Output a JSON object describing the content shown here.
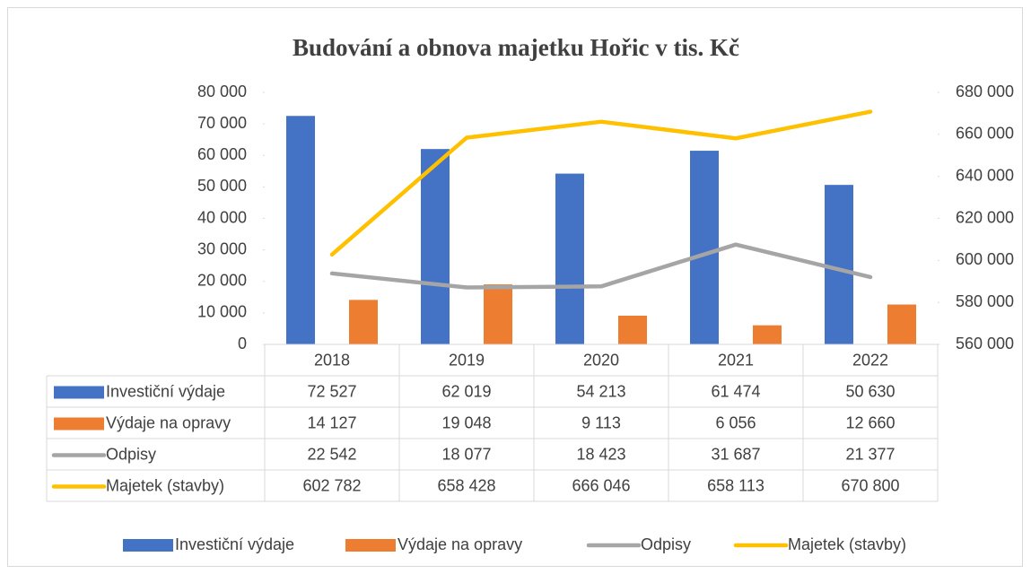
{
  "chart_data": {
    "type": "bar",
    "title": "Budování a obnova majetku Hořic v tis. Kč",
    "categories": [
      "2018",
      "2019",
      "2020",
      "2021",
      "2022"
    ],
    "series": [
      {
        "name": "Investiční výdaje",
        "type": "bar",
        "color": "#4472c4",
        "values": [
          72527,
          62019,
          54213,
          61474,
          50630
        ],
        "value_labels": [
          "72 527",
          "62 019",
          "54 213",
          "61 474",
          "50 630"
        ]
      },
      {
        "name": "Výdaje na opravy",
        "type": "bar",
        "color": "#ed7d31",
        "values": [
          14127,
          19048,
          9113,
          6056,
          12660
        ],
        "value_labels": [
          "14 127",
          "19 048",
          "9 113",
          "6 056",
          "12 660"
        ]
      },
      {
        "name": "Odpisy",
        "type": "line",
        "color": "#a5a5a5",
        "values": [
          22542,
          18077,
          18423,
          31687,
          21377
        ],
        "value_labels": [
          "22 542",
          "18 077",
          "18 423",
          "31 687",
          "21 377"
        ]
      },
      {
        "name": "Majetek (stavby)",
        "type": "line",
        "axis": "y2",
        "color": "#ffc000",
        "values": [
          602782,
          658428,
          666046,
          658113,
          670800
        ],
        "value_labels": [
          "602 782",
          "658 428",
          "666 046",
          "658 113",
          "670 800"
        ]
      }
    ],
    "ylim": [
      0,
      80000
    ],
    "yticks": [
      0,
      {
        "value": 10000,
        "label": "10 000"
      },
      {
        "value": 20000,
        "label": "20 000"
      },
      {
        "value": 30000,
        "label": "30 000"
      },
      {
        "value": 40000,
        "label": "40 000"
      },
      {
        "value": 50000,
        "label": "50 000"
      },
      {
        "value": 60000,
        "label": "60 000"
      },
      {
        "value": 70000,
        "label": "70 000"
      },
      {
        "value": 80000,
        "label": "80 000"
      }
    ],
    "y2lim": [
      560000,
      680000
    ],
    "y2ticks": [
      {
        "value": 560000,
        "label": "560 000"
      },
      {
        "value": 580000,
        "label": "580 000"
      },
      {
        "value": 600000,
        "label": "600 000"
      },
      {
        "value": 620000,
        "label": "620 000"
      },
      {
        "value": 640000,
        "label": "640 000"
      },
      {
        "value": 660000,
        "label": "660 000"
      },
      {
        "value": 680000,
        "label": "680 000"
      }
    ],
    "legend": "bottom"
  }
}
